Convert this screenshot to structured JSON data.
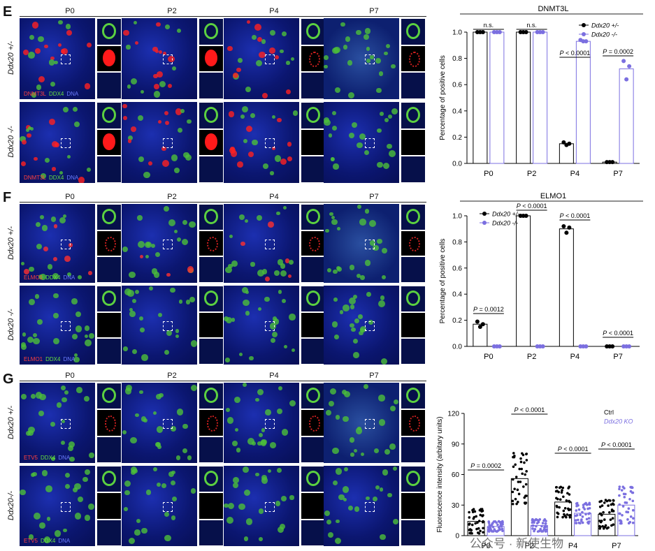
{
  "panels": {
    "E": {
      "letter": "E",
      "columns": [
        "P0",
        "P2",
        "P4",
        "P7"
      ],
      "rows": [
        "Ddx20 +/-",
        "Ddx20 -/-"
      ],
      "stain_legend": {
        "marker": "DNMT3L",
        "ddx4": "DDX4",
        "dna": "DNA"
      }
    },
    "F": {
      "letter": "F",
      "columns": [
        "P0",
        "P2",
        "P4",
        "P7"
      ],
      "rows": [
        "Ddx20 +/-",
        "Ddx20 -/-"
      ],
      "stain_legend": {
        "marker": "ELMO1",
        "ddx4": "DDX4",
        "dna": "DNA"
      }
    },
    "G": {
      "letter": "G",
      "columns": [
        "P0",
        "P2",
        "P4",
        "P7"
      ],
      "rows": [
        "Ddx20 +/-",
        "Ddx20-/-"
      ],
      "stain_legend": {
        "marker": "ETV5",
        "ddx4": "DDX4",
        "dna": "DNA"
      }
    }
  },
  "chart_data": [
    {
      "type": "bar",
      "title": "DNMT3L",
      "ylabel": "Percentage of positive  cells",
      "categories": [
        "P0",
        "P2",
        "P4",
        "P7"
      ],
      "ylim": [
        0,
        1.0
      ],
      "yticks": [
        "0.0",
        "0.2",
        "0.4",
        "0.6",
        "0.8",
        "1.0"
      ],
      "series": [
        {
          "name": "Ddx20 +/-",
          "color": "#000000",
          "values": [
            1.0,
            1.0,
            0.15,
            0.01
          ],
          "points": [
            [
              1.0,
              1.0,
              1.0
            ],
            [
              1.0,
              1.0,
              1.0
            ],
            [
              0.16,
              0.14,
              0.15
            ],
            [
              0.01,
              0.01,
              0.01
            ]
          ]
        },
        {
          "name": "Ddx20 -/-",
          "color": "#7b6fe0",
          "values": [
            1.0,
            1.0,
            0.93,
            0.72
          ],
          "points": [
            [
              1.0,
              1.0,
              1.0
            ],
            [
              1.0,
              1.0,
              1.0
            ],
            [
              0.94,
              0.93,
              0.93
            ],
            [
              0.78,
              0.64,
              0.74
            ]
          ]
        }
      ],
      "annotations": [
        {
          "category": "P0",
          "text": "n.s."
        },
        {
          "category": "P2",
          "text": "n.s."
        },
        {
          "category": "P4",
          "text": "P < 0.0001",
          "p": "P",
          "rest": " < 0.0001"
        },
        {
          "category": "P7",
          "text": "P = 0.0002",
          "p": "P",
          "rest": " = 0.0002"
        }
      ]
    },
    {
      "type": "bar",
      "title": "ELMO1",
      "ylabel": "Percentage of positive  cells",
      "categories": [
        "P0",
        "P2",
        "P4",
        "P7"
      ],
      "ylim": [
        0,
        1.0
      ],
      "yticks": [
        "0.0",
        "0.2",
        "0.4",
        "0.6",
        "0.8",
        "1.0"
      ],
      "series": [
        {
          "name": "Ddx20 +/-",
          "color": "#000000",
          "values": [
            0.17,
            1.0,
            0.9,
            0.0
          ],
          "points": [
            [
              0.19,
              0.15,
              0.17
            ],
            [
              1.0,
              1.0,
              1.0
            ],
            [
              0.92,
              0.87,
              0.91
            ],
            [
              0,
              0,
              0
            ]
          ]
        },
        {
          "name": "Ddx20 -/-",
          "color": "#7b6fe0",
          "values": [
            0.0,
            0.0,
            0.0,
            0.0
          ],
          "points": [
            [
              0,
              0,
              0
            ],
            [
              0,
              0,
              0
            ],
            [
              0,
              0,
              0
            ],
            [
              0,
              0,
              0
            ]
          ]
        }
      ],
      "annotations": [
        {
          "category": "P0",
          "text": "P = 0.0012",
          "p": "P",
          "rest": " = 0.0012"
        },
        {
          "category": "P2",
          "text": "P < 0.0001",
          "p": "P",
          "rest": " < 0.0001"
        },
        {
          "category": "P4",
          "text": "P < 0.0001",
          "p": "P",
          "rest": " < 0.0001"
        },
        {
          "category": "P7",
          "text": "P < 0.0001",
          "p": "P",
          "rest": " < 0.0001"
        }
      ]
    },
    {
      "type": "bar",
      "title": "",
      "ylabel": "Fluorescence intensity (arbitary units)",
      "categories": [
        "P0",
        "P2",
        "P4",
        "P7"
      ],
      "ylim": [
        0,
        120
      ],
      "yticks": [
        "0",
        "30",
        "60",
        "90",
        "120"
      ],
      "series": [
        {
          "name": "Ctrl",
          "color": "#000000",
          "values": [
            14,
            56,
            33,
            21
          ]
        },
        {
          "name": "Ddx20 KO",
          "color": "#7b6fe0",
          "values": [
            9,
            10,
            22,
            30
          ]
        }
      ],
      "annotations": [
        {
          "category": "P0",
          "text": "P = 0.0002",
          "p": "P",
          "rest": " = 0.0002"
        },
        {
          "category": "P2",
          "text": "P < 0.0001",
          "p": "P",
          "rest": " < 0.0001"
        },
        {
          "category": "P4",
          "text": "P < 0.0001",
          "p": "P",
          "rest": " < 0.0001"
        },
        {
          "category": "P7",
          "text": "P < 0.0001",
          "p": "P",
          "rest": " < 0.0001"
        }
      ]
    }
  ],
  "watermark": "公众号 · 新使生物"
}
